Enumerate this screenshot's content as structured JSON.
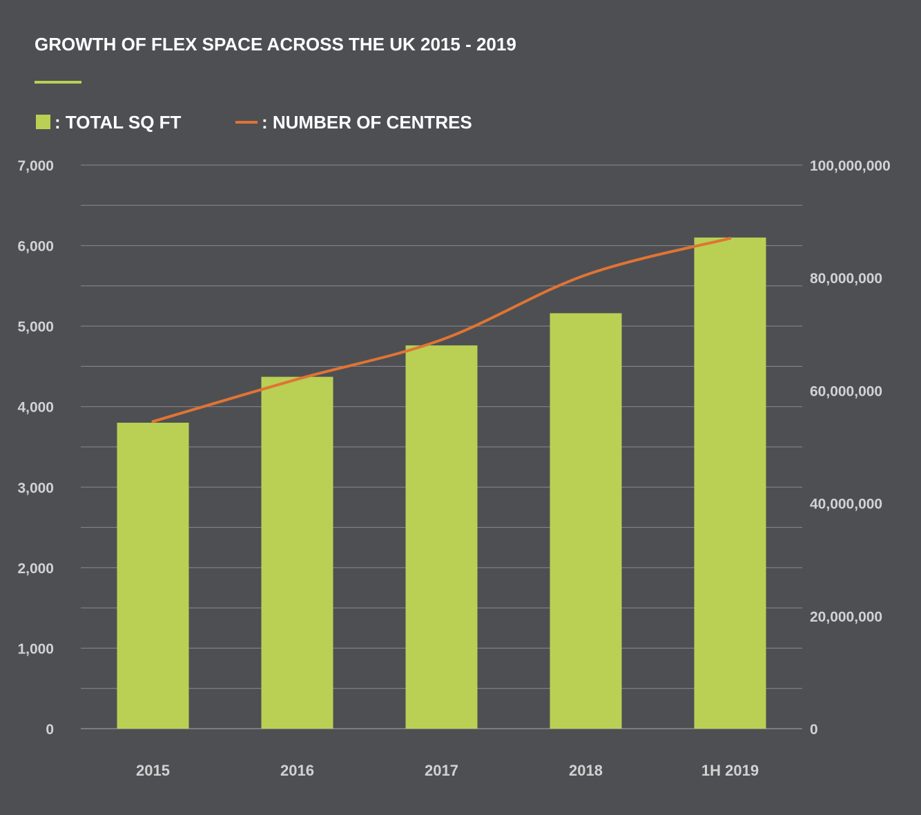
{
  "chart_data": {
    "type": "bar",
    "title": "GROWTH OF FLEX SPACE ACROSS THE UK 2015 - 2019",
    "categories": [
      "2015",
      "2016",
      "2017",
      "2018",
      "1H 2019"
    ],
    "series": [
      {
        "name": ": TOTAL SQ FT",
        "type": "bar",
        "axis": "left",
        "color": "#b9d054",
        "values": [
          3800,
          4370,
          4760,
          5160,
          6100
        ]
      },
      {
        "name": ": NUMBER OF CENTRES",
        "type": "line",
        "axis": "right",
        "color": "#e07433",
        "values": [
          54500000,
          62000000,
          69000000,
          80500000,
          87000000
        ]
      }
    ],
    "left_axis": {
      "ylim": [
        0,
        7000
      ],
      "ticks": [
        "0",
        "1,000",
        "2,000",
        "3,000",
        "4,000",
        "5,000",
        "6,000",
        "7,000"
      ]
    },
    "right_axis": {
      "ylim": [
        0,
        100000000
      ],
      "ticks": [
        "0",
        "20,000,000",
        "40,000,000",
        "60,000,000",
        "80,000,000",
        "100,000,000"
      ]
    },
    "grid": true,
    "legend_position": "top-left"
  },
  "colors": {
    "background": "#4e4f53",
    "accent": "#b9d054",
    "line": "#e07433",
    "grid": "#8a8b8e"
  }
}
